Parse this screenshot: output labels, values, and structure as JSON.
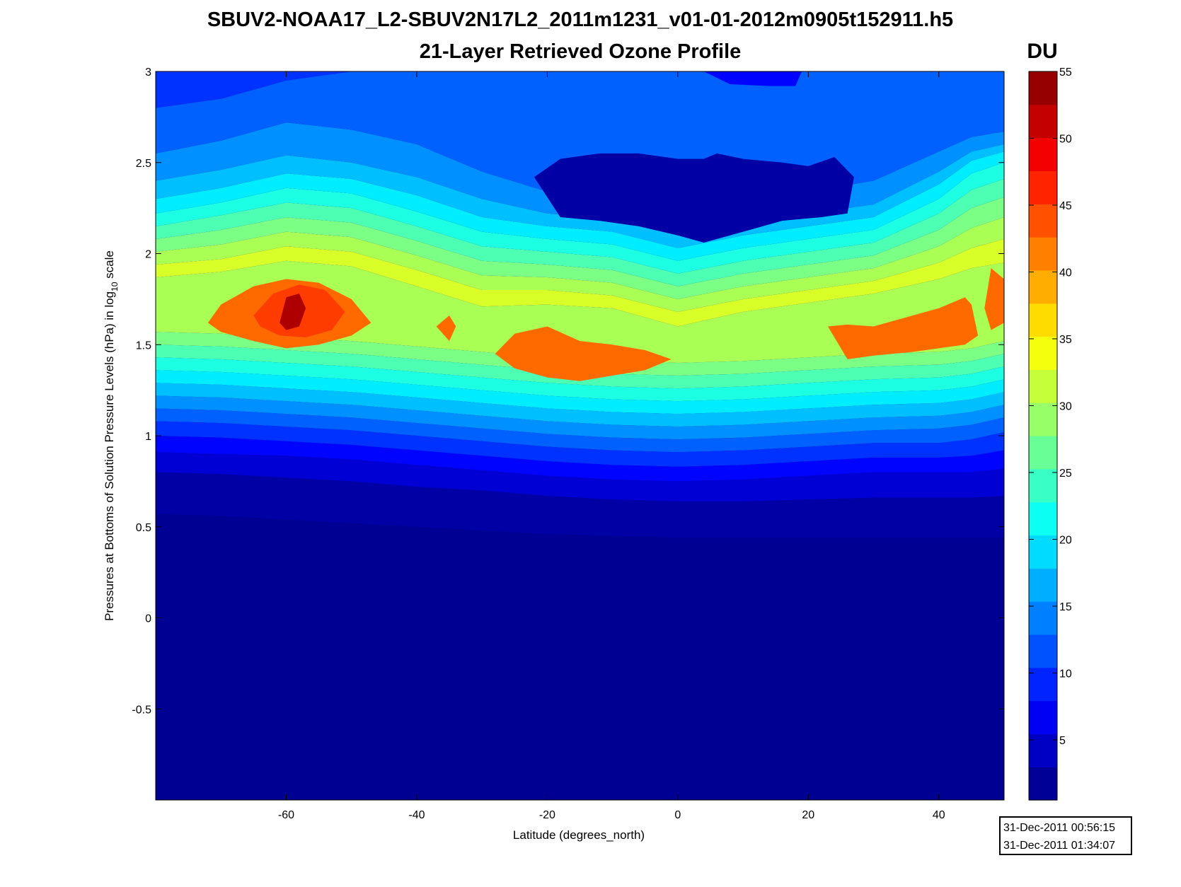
{
  "title": {
    "line1": "SBUV2-NOAA17_L2-SBUV2N17L2_2011m1231_v01-01-2012m0905t152911.h5",
    "line2": "21-Layer Retrieved Ozone Profile"
  },
  "chart_data": {
    "type": "heatmap",
    "xlabel": "Latitude (degrees_north)",
    "ylabel_parts": [
      "Pressures at Bottoms of Solution Pressure Levels (hPa) in log",
      "10",
      " scale"
    ],
    "xlim": [
      -80,
      50
    ],
    "ylim": [
      -1,
      3
    ],
    "x_ticks": [
      -60,
      -40,
      -20,
      0,
      20,
      40
    ],
    "x_tick_labels": [
      "-60",
      "-40",
      "-20",
      "0",
      "20",
      "40"
    ],
    "y_ticks": [
      3,
      2.5,
      2,
      1.5,
      1,
      0.5,
      0,
      -0.5
    ],
    "y_tick_labels": [
      "3",
      "2.5",
      "2",
      "1.5",
      "1",
      "0.5",
      "0",
      "-0.5"
    ],
    "colorbar": {
      "unit": "DU",
      "range": [
        0.5,
        55
      ],
      "ticks": [
        5,
        10,
        15,
        20,
        25,
        30,
        35,
        40,
        45,
        50,
        55
      ],
      "tick_labels": [
        "5",
        "10",
        "15",
        "20",
        "25",
        "30",
        "35",
        "40",
        "45",
        "50",
        "55"
      ],
      "levels": 22,
      "colormap": "jet"
    },
    "contour_level_boundaries": {
      "x": [
        -80,
        -70,
        -60,
        -50,
        -40,
        -30,
        -20,
        -10,
        0,
        10,
        20,
        30,
        40,
        45,
        50
      ],
      "rows": [
        {
          "level": 2.5,
          "y": [
            0.57,
            0.56,
            0.54,
            0.52,
            0.5,
            0.48,
            0.46,
            0.45,
            0.44,
            0.44,
            0.44,
            0.44,
            0.44,
            0.44,
            0.44
          ]
        },
        {
          "level": 5,
          "y": [
            0.8,
            0.79,
            0.77,
            0.75,
            0.72,
            0.7,
            0.67,
            0.65,
            0.64,
            0.64,
            0.65,
            0.66,
            0.66,
            0.66,
            0.67
          ]
        },
        {
          "level": 7.5,
          "y": [
            0.91,
            0.9,
            0.89,
            0.87,
            0.84,
            0.81,
            0.78,
            0.76,
            0.75,
            0.76,
            0.78,
            0.8,
            0.8,
            0.8,
            0.82
          ]
        },
        {
          "level": 10,
          "y": [
            1.0,
            0.99,
            0.97,
            0.95,
            0.92,
            0.89,
            0.86,
            0.84,
            0.83,
            0.84,
            0.86,
            0.88,
            0.88,
            0.89,
            0.92
          ]
        },
        {
          "level": 12.5,
          "y": [
            1.08,
            1.07,
            1.05,
            1.03,
            1.0,
            0.97,
            0.94,
            0.92,
            0.91,
            0.92,
            0.94,
            0.96,
            0.96,
            0.98,
            1.02
          ]
        },
        {
          "level": 15,
          "y": [
            1.15,
            1.14,
            1.12,
            1.1,
            1.07,
            1.04,
            1.01,
            0.99,
            0.98,
            0.99,
            1.01,
            1.03,
            1.04,
            1.06,
            1.1
          ]
        },
        {
          "level": 17.5,
          "y": [
            1.22,
            1.21,
            1.19,
            1.17,
            1.14,
            1.11,
            1.08,
            1.06,
            1.05,
            1.06,
            1.08,
            1.1,
            1.11,
            1.13,
            1.17
          ]
        },
        {
          "level": 20,
          "y": [
            1.29,
            1.28,
            1.26,
            1.24,
            1.21,
            1.18,
            1.15,
            1.13,
            1.12,
            1.13,
            1.15,
            1.17,
            1.18,
            1.2,
            1.24
          ]
        },
        {
          "level": 22.5,
          "y": [
            1.36,
            1.35,
            1.33,
            1.31,
            1.28,
            1.25,
            1.22,
            1.2,
            1.19,
            1.2,
            1.22,
            1.24,
            1.25,
            1.27,
            1.31
          ]
        },
        {
          "level": 25,
          "y": [
            1.43,
            1.42,
            1.4,
            1.38,
            1.35,
            1.32,
            1.29,
            1.27,
            1.26,
            1.27,
            1.29,
            1.31,
            1.32,
            1.34,
            1.38
          ]
        },
        {
          "level": 27.5,
          "y": [
            1.5,
            1.49,
            1.47,
            1.45,
            1.42,
            1.39,
            1.36,
            1.34,
            1.33,
            1.34,
            1.36,
            1.38,
            1.39,
            1.41,
            1.45
          ]
        },
        {
          "level": 30,
          "y": [
            1.57,
            1.56,
            1.54,
            1.52,
            1.49,
            1.46,
            1.43,
            1.41,
            1.4,
            1.41,
            1.43,
            1.45,
            1.46,
            1.48,
            1.52
          ]
        },
        {
          "level": 32.5,
          "y": [
            1.87,
            1.9,
            1.96,
            1.93,
            1.82,
            1.71,
            1.72,
            1.7,
            1.6,
            1.68,
            1.73,
            1.78,
            1.86,
            1.92,
            1.95
          ]
        },
        {
          "level": 30,
          "y": [
            1.94,
            1.97,
            2.04,
            2.01,
            1.91,
            1.8,
            1.8,
            1.77,
            1.68,
            1.75,
            1.8,
            1.85,
            1.95,
            2.03,
            2.08
          ]
        },
        {
          "level": 27.5,
          "y": [
            2.01,
            2.05,
            2.12,
            2.09,
            1.99,
            1.88,
            1.87,
            1.84,
            1.75,
            1.82,
            1.87,
            1.92,
            2.04,
            2.14,
            2.2
          ]
        },
        {
          "level": 25,
          "y": [
            2.08,
            2.13,
            2.2,
            2.17,
            2.07,
            1.96,
            1.94,
            1.91,
            1.82,
            1.89,
            1.94,
            1.99,
            2.13,
            2.25,
            2.31
          ]
        },
        {
          "level": 22.5,
          "y": [
            2.15,
            2.21,
            2.28,
            2.25,
            2.15,
            2.04,
            2.01,
            1.98,
            1.89,
            1.96,
            2.01,
            2.06,
            2.22,
            2.35,
            2.41
          ]
        },
        {
          "level": 20,
          "y": [
            2.22,
            2.28,
            2.36,
            2.33,
            2.23,
            2.12,
            2.08,
            2.05,
            1.96,
            2.03,
            2.08,
            2.13,
            2.3,
            2.44,
            2.5
          ]
        },
        {
          "level": 17.5,
          "y": [
            2.3,
            2.36,
            2.44,
            2.41,
            2.32,
            2.2,
            2.15,
            2.12,
            2.03,
            2.1,
            2.15,
            2.2,
            2.38,
            2.51,
            2.56
          ]
        },
        {
          "level": 15,
          "y": [
            2.4,
            2.46,
            2.54,
            2.5,
            2.42,
            2.3,
            2.22,
            2.19,
            2.1,
            2.17,
            2.22,
            2.27,
            2.45,
            2.56,
            2.6
          ]
        },
        {
          "level": 12.5,
          "y": [
            2.55,
            2.62,
            2.72,
            2.68,
            2.6,
            2.45,
            2.34,
            2.3,
            2.2,
            2.28,
            2.34,
            2.4,
            2.56,
            2.64,
            2.67
          ]
        },
        {
          "level": 10,
          "y": [
            2.8,
            2.85,
            2.95,
            3.0,
            3.0,
            3.0,
            3.0,
            3.0,
            3.0,
            3.0,
            3.0,
            3.0,
            3.0,
            3.0,
            3.0
          ]
        }
      ]
    },
    "contour_features": [
      {
        "value": 42.5,
        "x": [
          -72,
          -70,
          -65,
          -60,
          -55,
          -50,
          -47,
          -50,
          -55,
          -60,
          -65,
          -70,
          -72
        ],
        "y": [
          1.62,
          1.72,
          1.82,
          1.86,
          1.84,
          1.75,
          1.62,
          1.55,
          1.5,
          1.48,
          1.52,
          1.57,
          1.62
        ]
      },
      {
        "value": 45,
        "x": [
          -65,
          -62,
          -58,
          -54,
          -51,
          -53,
          -57,
          -61,
          -64,
          -65
        ],
        "y": [
          1.66,
          1.78,
          1.83,
          1.8,
          1.68,
          1.58,
          1.54,
          1.55,
          1.6,
          1.66
        ]
      },
      {
        "value": 52.5,
        "x": [
          -61,
          -60,
          -58,
          -57,
          -58,
          -60,
          -61
        ],
        "y": [
          1.62,
          1.76,
          1.78,
          1.7,
          1.6,
          1.58,
          1.62
        ]
      },
      {
        "value": 42.5,
        "x": [
          -37,
          -35,
          -34,
          -35,
          -37
        ],
        "y": [
          1.6,
          1.66,
          1.6,
          1.52,
          1.6
        ]
      },
      {
        "value": 42.5,
        "x": [
          -28,
          -25,
          -20,
          -15,
          -10,
          -5,
          -1,
          -5,
          -10,
          -15,
          -20,
          -25,
          -28
        ],
        "y": [
          1.45,
          1.56,
          1.6,
          1.52,
          1.5,
          1.47,
          1.42,
          1.36,
          1.33,
          1.3,
          1.32,
          1.37,
          1.45
        ]
      },
      {
        "value": 42.5,
        "x": [
          23,
          26,
          30,
          36,
          40,
          44,
          45,
          46,
          44,
          40,
          36,
          30,
          26,
          23
        ],
        "y": [
          1.6,
          1.61,
          1.6,
          1.66,
          1.7,
          1.76,
          1.72,
          1.55,
          1.5,
          1.48,
          1.46,
          1.44,
          1.42,
          1.6
        ]
      },
      {
        "value": 42.5,
        "x": [
          47,
          48,
          50,
          50,
          48,
          47
        ],
        "y": [
          1.7,
          1.92,
          1.86,
          1.62,
          1.58,
          1.7
        ]
      },
      {
        "value": 2.5,
        "x": [
          -22,
          -18,
          -12,
          -6,
          0,
          4,
          6,
          10,
          16,
          20,
          24,
          27,
          26,
          22,
          16,
          10,
          6,
          4,
          0,
          -6,
          -12,
          -18,
          -22
        ],
        "y": [
          2.42,
          2.52,
          2.55,
          2.55,
          2.52,
          2.52,
          2.55,
          2.52,
          2.5,
          2.48,
          2.53,
          2.42,
          2.22,
          2.2,
          2.18,
          2.12,
          2.08,
          2.06,
          2.1,
          2.15,
          2.18,
          2.2,
          2.42
        ]
      },
      {
        "value": 7.5,
        "x": [
          4,
          8,
          14,
          18,
          19,
          4
        ],
        "y": [
          3.0,
          2.93,
          2.92,
          2.92,
          3.0,
          3.0
        ]
      }
    ]
  },
  "time_box": {
    "start": "31-Dec-2011 00:56:15",
    "end": "31-Dec-2011 01:34:07"
  }
}
